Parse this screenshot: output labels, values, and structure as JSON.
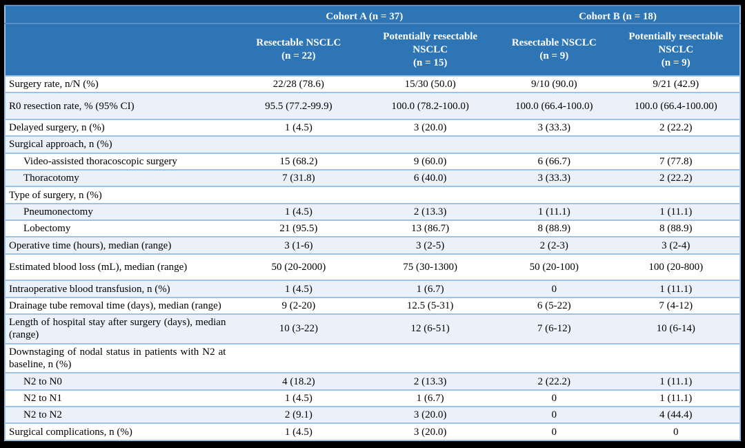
{
  "table": {
    "cohorts": [
      {
        "label": "Cohort A (n = 37)"
      },
      {
        "label": "Cohort B (n = 18)"
      }
    ],
    "columns": [
      {
        "name": "Resectable NSCLC",
        "n": "(n = 22)"
      },
      {
        "name": "Potentially resectable NSCLC",
        "n": "(n = 15)"
      },
      {
        "name": "Resectable NSCLC",
        "n": "(n = 9)"
      },
      {
        "name": "Potentially resectable NSCLC",
        "n": "(n = 9)"
      }
    ],
    "rows": [
      {
        "label": "Surgery rate, n/N (%)",
        "values": [
          "22/28 (78.6)",
          "15/30 (50.0)",
          "9/10 (90.0)",
          "9/21 (42.9)"
        ]
      },
      {
        "label": "R0 resection rate, % (95% CI)",
        "tall": true,
        "values": [
          "95.5 (77.2-99.9)",
          "100.0 (78.2-100.0)",
          "100.0 (66.4-100.0)",
          "100.0 (66.4-100.00)"
        ]
      },
      {
        "label": "Delayed surgery, n (%)",
        "values": [
          "1 (4.5)",
          "3 (20.0)",
          "3 (33.3)",
          "2 (22.2)"
        ]
      },
      {
        "label": "Surgical approach, n (%)",
        "section": true,
        "values": [
          "",
          "",
          "",
          ""
        ]
      },
      {
        "label": "Video-assisted thoracoscopic surgery",
        "indent": true,
        "values": [
          "15 (68.2)",
          "9 (60.0)",
          "6 (66.7)",
          "7 (77.8)"
        ]
      },
      {
        "label": "Thoracotomy",
        "indent": true,
        "values": [
          "7 (31.8)",
          "6 (40.0)",
          "3 (33.3)",
          "2 (22.2)"
        ]
      },
      {
        "label": "Type of surgery, n (%)",
        "section": true,
        "values": [
          "",
          "",
          "",
          ""
        ]
      },
      {
        "label": "Pneumonectomy",
        "indent": true,
        "values": [
          "1 (4.5)",
          "2 (13.3)",
          "1 (11.1)",
          "1 (11.1)"
        ]
      },
      {
        "label": "Lobectomy",
        "indent": true,
        "values": [
          "21 (95.5)",
          "13 (86.7)",
          "8 (88.9)",
          "8 (88.9)"
        ]
      },
      {
        "label": "Operative time (hours), median (range)",
        "values": [
          "3 (1-6)",
          "3 (2-5)",
          "2 (2-3)",
          "3 (2-4)"
        ]
      },
      {
        "label": "Estimated blood loss (mL), median (range)",
        "tall": true,
        "values": [
          "50 (20-2000)",
          "75 (30-1300)",
          "50 (20-100)",
          "100 (20-800)"
        ]
      },
      {
        "label": "Intraoperative blood transfusion, n (%)",
        "values": [
          "1 (4.5)",
          "1 (6.7)",
          "0",
          "1 (11.1)"
        ]
      },
      {
        "label": "Drainage tube removal time (days), median (range)",
        "values": [
          "9 (2-20)",
          "12.5 (5-31)",
          "6 (5-22)",
          "7 (4-12)"
        ]
      },
      {
        "label": "Length of hospital stay after surgery (days), median (range)",
        "values": [
          "10 (3-22)",
          "12 (6-51)",
          "7 (6-12)",
          "10 (6-14)"
        ]
      },
      {
        "label": "Downstaging of nodal status in patients with N2 at baseline, n (%)",
        "section": true,
        "values": [
          "",
          "",
          "",
          ""
        ]
      },
      {
        "label": "N2 to N0",
        "indent": true,
        "values": [
          "4 (18.2)",
          "2 (13.3)",
          "2 (22.2)",
          "1 (11.1)"
        ]
      },
      {
        "label": "N2 to N1",
        "indent": true,
        "values": [
          "1 (4.5)",
          "1 (6.7)",
          "0",
          "1 (11.1)"
        ]
      },
      {
        "label": "N2 to N2",
        "indent": true,
        "values": [
          "2 (9.1)",
          "3 (20.0)",
          "0",
          "4 (44.4)"
        ]
      },
      {
        "label": "Surgical complications, n (%)",
        "values": [
          "1 (4.5)",
          "3 (20.0)",
          "0",
          "0"
        ]
      }
    ]
  },
  "colors": {
    "header_bg": "#2E75B6",
    "row_alt_bg": "#EAF1F9",
    "row_border": "#9CC2E5",
    "frame_bg": "#000000",
    "header_text": "#ffffff",
    "body_text": "#000000"
  }
}
